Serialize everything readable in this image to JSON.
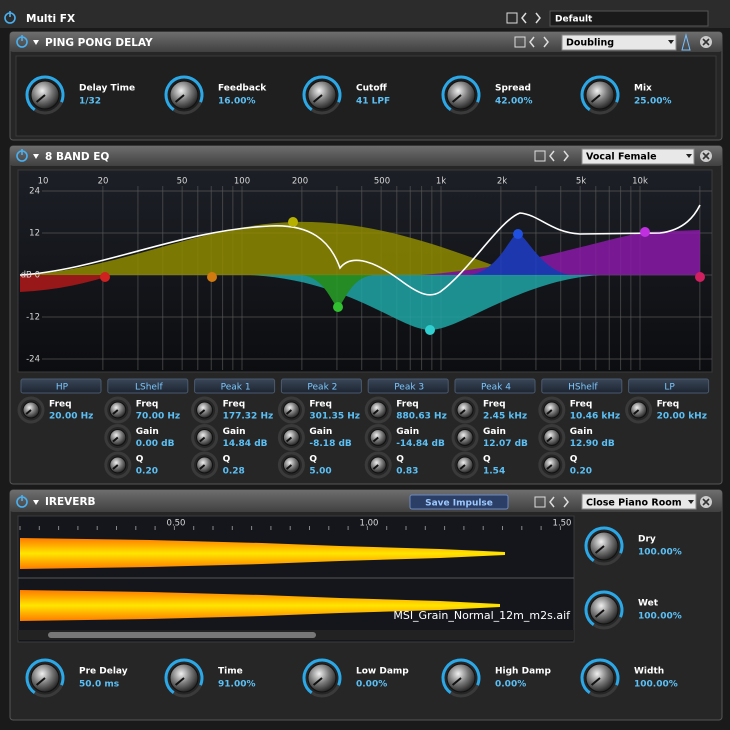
{
  "header": {
    "title": "Multi FX",
    "preset": "Default"
  },
  "delay": {
    "title": "PING PONG DELAY",
    "preset": "Doubling",
    "knobs": [
      {
        "label": "Delay Time",
        "value": "1/32"
      },
      {
        "label": "Feedback",
        "value": "16.00%"
      },
      {
        "label": "Cutoff",
        "value": "41 LPF"
      },
      {
        "label": "Spread",
        "value": "42.00%"
      },
      {
        "label": "Mix",
        "value": "25.00%"
      }
    ]
  },
  "eq": {
    "title": "8 BAND EQ",
    "preset": "Vocal Female",
    "freq_labels": [
      "10",
      "20",
      "50",
      "100",
      "200",
      "500",
      "1k",
      "2k",
      "5k",
      "10k"
    ],
    "gain_labels": [
      "24",
      "12",
      "dB 0",
      "-12",
      "-24"
    ],
    "bands": [
      {
        "name": "HP",
        "params": [
          {
            "label": "Freq",
            "value": "20.00 Hz"
          }
        ]
      },
      {
        "name": "LShelf",
        "params": [
          {
            "label": "Freq",
            "value": "70.00 Hz"
          },
          {
            "label": "Gain",
            "value": "0.00 dB"
          },
          {
            "label": "Q",
            "value": "0.20"
          }
        ]
      },
      {
        "name": "Peak 1",
        "params": [
          {
            "label": "Freq",
            "value": "177.32 Hz"
          },
          {
            "label": "Gain",
            "value": "14.84 dB"
          },
          {
            "label": "Q",
            "value": "0.28"
          }
        ]
      },
      {
        "name": "Peak 2",
        "params": [
          {
            "label": "Freq",
            "value": "301.35 Hz"
          },
          {
            "label": "Gain",
            "value": "-8.18 dB"
          },
          {
            "label": "Q",
            "value": "5.00"
          }
        ]
      },
      {
        "name": "Peak 3",
        "params": [
          {
            "label": "Freq",
            "value": "880.63 Hz"
          },
          {
            "label": "Gain",
            "value": "-14.84 dB"
          },
          {
            "label": "Q",
            "value": "0.83"
          }
        ]
      },
      {
        "name": "Peak 4",
        "params": [
          {
            "label": "Freq",
            "value": "2.45 kHz"
          },
          {
            "label": "Gain",
            "value": "12.07 dB"
          },
          {
            "label": "Q",
            "value": "1.54"
          }
        ]
      },
      {
        "name": "HShelf",
        "params": [
          {
            "label": "Freq",
            "value": "10.46 kHz"
          },
          {
            "label": "Gain",
            "value": "12.90 dB"
          },
          {
            "label": "Q",
            "value": "0.20"
          }
        ]
      },
      {
        "name": "LP",
        "params": [
          {
            "label": "Freq",
            "value": "20.00 kHz"
          }
        ]
      }
    ]
  },
  "reverb": {
    "title": "IREVERB",
    "button": "Save Impulse",
    "preset": "Close Piano Room",
    "time_labels": [
      "0.50",
      "1.00",
      "1.50"
    ],
    "file": "MSI_Grain_Normal_12m_m2s.aif",
    "side_knobs": [
      {
        "label": "Dry",
        "value": "100.00%"
      },
      {
        "label": "Wet",
        "value": "100.00%"
      }
    ],
    "knobs": [
      {
        "label": "Pre Delay",
        "value": "50.0 ms"
      },
      {
        "label": "Time",
        "value": "91.00%"
      },
      {
        "label": "Low Damp",
        "value": "0.00%"
      },
      {
        "label": "High Damp",
        "value": "0.00%"
      },
      {
        "label": "Width",
        "value": "100.00%"
      }
    ]
  }
}
